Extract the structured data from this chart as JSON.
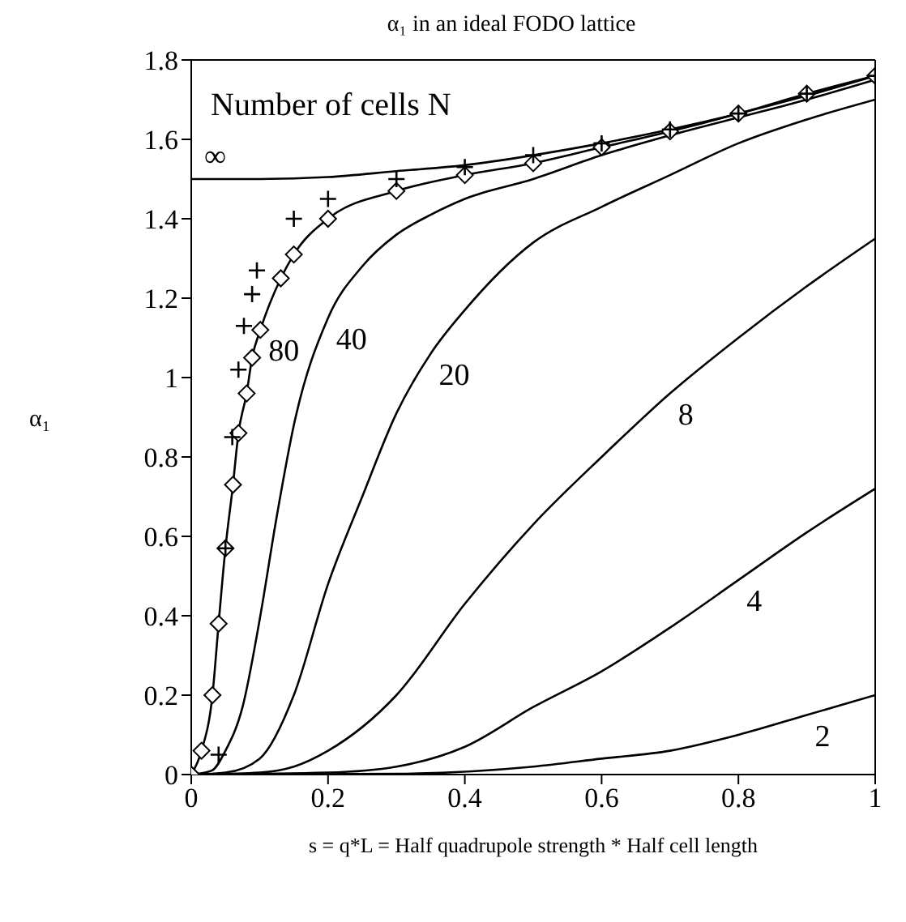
{
  "chart_data": {
    "type": "line",
    "title": "α₁ in an ideal FODO lattice",
    "xlabel": "s = q*L = Half quadrupole strength * Half cell length",
    "ylabel": "α₁",
    "legend_title": "Number of cells N",
    "xlim": [
      0,
      1
    ],
    "ylim": [
      0,
      1.8
    ],
    "xticks": [
      0,
      0.2,
      0.4,
      0.6,
      0.8,
      1
    ],
    "yticks": [
      0,
      0.2,
      0.4,
      0.6,
      0.8,
      1,
      1.2,
      1.4,
      1.6,
      1.8
    ],
    "legend": false,
    "marker": "none",
    "line_style": "solid",
    "series": [
      {
        "name": "∞",
        "color": "#000000",
        "x": [
          0,
          0.1,
          0.2,
          0.3,
          0.4,
          0.5,
          0.6,
          0.7,
          0.8,
          0.9,
          1.0
        ],
        "values": [
          1.5,
          1.5,
          1.505,
          1.52,
          1.535,
          1.56,
          1.59,
          1.625,
          1.665,
          1.71,
          1.76
        ]
      },
      {
        "name": "80",
        "color": "#000000",
        "marker": "diamond",
        "x": [
          0,
          0.015,
          0.031,
          0.04,
          0.05,
          0.061,
          0.069,
          0.081,
          0.089,
          0.101,
          0.131,
          0.15,
          0.2,
          0.3,
          0.4,
          0.5,
          0.6,
          0.7,
          0.8,
          0.9,
          1.0
        ],
        "values": [
          0,
          0.06,
          0.2,
          0.38,
          0.57,
          0.73,
          0.86,
          0.96,
          1.05,
          1.12,
          1.25,
          1.31,
          1.4,
          1.47,
          1.51,
          1.54,
          1.58,
          1.62,
          1.665,
          1.715,
          1.76
        ]
      },
      {
        "type": "scatter",
        "color": "#000000",
        "marker": "cross",
        "x": [
          0.04,
          0.05,
          0.06,
          0.069,
          0.077,
          0.089,
          0.096,
          0.15,
          0.2,
          0.3,
          0.4,
          0.5,
          0.6,
          0.7,
          0.8,
          0.9,
          1.0
        ],
        "values": [
          0.05,
          0.57,
          0.85,
          1.02,
          1.13,
          1.21,
          1.27,
          1.4,
          1.45,
          1.5,
          1.53,
          1.56,
          1.59,
          1.625,
          1.665,
          1.715,
          1.76
        ]
      },
      {
        "name": "40",
        "color": "#000000",
        "x": [
          0,
          0.03,
          0.05,
          0.075,
          0.1,
          0.125,
          0.15,
          0.2,
          0.25,
          0.3,
          0.35,
          0.4,
          0.5,
          0.6,
          0.7,
          0.8,
          0.9,
          1.0
        ],
        "values": [
          0,
          0.01,
          0.06,
          0.17,
          0.39,
          0.65,
          0.88,
          1.15,
          1.28,
          1.36,
          1.41,
          1.45,
          1.5,
          1.56,
          1.61,
          1.655,
          1.7,
          1.75
        ]
      },
      {
        "name": "20",
        "color": "#000000",
        "x": [
          0,
          0.05,
          0.1,
          0.15,
          0.2,
          0.25,
          0.3,
          0.35,
          0.4,
          0.5,
          0.6,
          0.7,
          0.8,
          0.9,
          1.0
        ],
        "values": [
          0,
          0.005,
          0.04,
          0.2,
          0.48,
          0.7,
          0.91,
          1.06,
          1.17,
          1.34,
          1.43,
          1.51,
          1.59,
          1.65,
          1.7
        ]
      },
      {
        "name": "8",
        "color": "#000000",
        "x": [
          0,
          0.1,
          0.15,
          0.2,
          0.3,
          0.4,
          0.5,
          0.6,
          0.7,
          0.8,
          0.9,
          1.0
        ],
        "values": [
          0,
          0.005,
          0.02,
          0.06,
          0.2,
          0.43,
          0.63,
          0.8,
          0.96,
          1.1,
          1.23,
          1.35
        ]
      },
      {
        "name": "4",
        "color": "#000000",
        "x": [
          0,
          0.2,
          0.3,
          0.4,
          0.5,
          0.6,
          0.7,
          0.8,
          0.9,
          1.0
        ],
        "values": [
          0,
          0.005,
          0.02,
          0.07,
          0.17,
          0.26,
          0.37,
          0.49,
          0.61,
          0.72
        ]
      },
      {
        "name": "2",
        "color": "#000000",
        "x": [
          0,
          0.3,
          0.5,
          0.6,
          0.7,
          0.8,
          0.9,
          1.0
        ],
        "values": [
          0,
          0.002,
          0.02,
          0.04,
          0.06,
          0.1,
          0.15,
          0.2
        ]
      }
    ]
  }
}
